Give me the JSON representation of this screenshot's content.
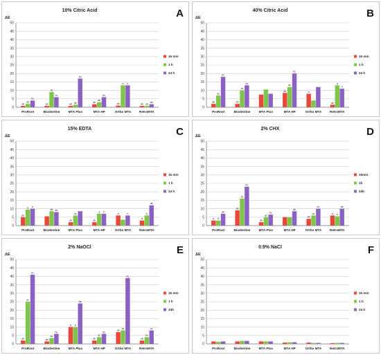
{
  "colors": {
    "s15": "#e8483a",
    "s1h": "#7ec54a",
    "s24h": "#8b62c3",
    "grid": "#c9c9c9",
    "axis": "#7a7a7a"
  },
  "chart_data": [
    {
      "type": "bar",
      "letter": "A",
      "title": "10% Citric Acid",
      "ylabel": "ΔE",
      "ylim": [
        0,
        50
      ],
      "yticks": [
        0,
        5,
        10,
        15,
        20,
        25,
        30,
        35,
        40,
        45,
        50
      ],
      "grid": true,
      "legend": "right",
      "categories": [
        "ProRoot",
        "Biodentine",
        "MTA Plus",
        "MTA HP",
        "Ortho MTA",
        "RetroMTA"
      ],
      "series": [
        {
          "name": "15 min",
          "values": [
            0.8,
            0.8,
            0.8,
            1.8,
            1.0,
            0.8
          ],
          "labels": [
            "ab",
            "ab",
            "ab",
            "ab",
            "ab",
            "ab"
          ]
        },
        {
          "name": "1 h",
          "values": [
            2.0,
            9.0,
            1.5,
            3.0,
            13.0,
            0.8
          ],
          "labels": [
            "ab",
            "ac",
            "ab",
            "ab",
            "a",
            "ab"
          ]
        },
        {
          "name": "24 h",
          "values": [
            4.0,
            6.0,
            17.0,
            6.0,
            13.0,
            1.8
          ],
          "labels": [
            "bc",
            "bc",
            "bc",
            "bc",
            "b",
            "ab"
          ]
        }
      ]
    },
    {
      "type": "bar",
      "letter": "B",
      "title": "40% Citric Acid",
      "ylabel": "ΔE",
      "ylim": [
        0,
        50
      ],
      "yticks": [
        0,
        5,
        10,
        15,
        20,
        25,
        30,
        35,
        40,
        45,
        50
      ],
      "grid": true,
      "legend": "right",
      "categories": [
        "ProRoot",
        "Biodentine",
        "MTA Plus",
        "MTA HP",
        "Ortho MTA",
        "RetroMTA"
      ],
      "series": [
        {
          "name": "15 min",
          "values": [
            2.0,
            2.0,
            7.5,
            8.5,
            8.0,
            1.5
          ],
          "labels": [
            "ab",
            "ab",
            "",
            "ab",
            "a",
            "ab"
          ]
        },
        {
          "name": "1 h",
          "values": [
            7.0,
            10.0,
            10.5,
            12.0,
            4.0,
            13.0
          ],
          "labels": [
            "ac",
            "ac",
            "",
            "ac",
            "",
            "a"
          ]
        },
        {
          "name": "24 h",
          "values": [
            18.0,
            13.0,
            8.0,
            20.0,
            12.0,
            11.0
          ],
          "labels": [
            "bc",
            "bc",
            "",
            "bc",
            "",
            "b"
          ]
        }
      ]
    },
    {
      "type": "bar",
      "letter": "C",
      "title": "15% EDTA",
      "ylabel": "ΔE",
      "ylim": [
        0,
        50
      ],
      "yticks": [
        0,
        5,
        10,
        15,
        20,
        25,
        30,
        35,
        40,
        45,
        50
      ],
      "grid": true,
      "legend": "right",
      "categories": [
        "ProRoot",
        "Biodentine",
        "MTA Plus",
        "MTA HP",
        "Ortho MTA",
        "RetroMTA"
      ],
      "series": [
        {
          "name": "15 min",
          "values": [
            5.0,
            5.5,
            2.0,
            2.0,
            6.0,
            3.0
          ],
          "labels": [
            "ab",
            "",
            "ab",
            "ab",
            "a",
            "a"
          ]
        },
        {
          "name": "1 h",
          "values": [
            9.5,
            8.5,
            6.0,
            7.0,
            3.5,
            6.0
          ],
          "labels": [
            "a",
            "ab",
            "ac",
            "a",
            "",
            "b"
          ]
        },
        {
          "name": "24 h",
          "values": [
            10.0,
            8.0,
            8.5,
            7.0,
            6.0,
            12.0
          ],
          "labels": [
            "b",
            "ab",
            "",
            "b",
            "b",
            "ab"
          ]
        }
      ]
    },
    {
      "type": "bar",
      "letter": "D",
      "title": "2% CHX",
      "ylabel": "ΔE",
      "ylim": [
        0,
        50
      ],
      "yticks": [
        0,
        5,
        10,
        15,
        20,
        25,
        30,
        35,
        40,
        45,
        50
      ],
      "grid": true,
      "legend": "right",
      "categories": [
        "ProRoot",
        "Biodentine",
        "MTA Plus",
        "MTA HP",
        "Ortho MTA",
        "RetroMTA"
      ],
      "series": [
        {
          "name": "15min",
          "values": [
            3.0,
            9.0,
            2.0,
            5.0,
            4.0,
            6.0
          ],
          "labels": [
            "a",
            "ab",
            "ab",
            "",
            "ab",
            "a"
          ]
        },
        {
          "name": "1h",
          "values": [
            3.0,
            16.0,
            5.0,
            5.0,
            6.0,
            5.5
          ],
          "labels": [
            "b",
            "ac",
            "ac",
            "",
            "ac",
            "b"
          ]
        },
        {
          "name": "24h",
          "values": [
            7.0,
            23.0,
            6.5,
            8.5,
            10.0,
            10.0
          ],
          "labels": [
            "ab",
            "bc",
            "bc",
            "ab",
            "bc",
            "ab"
          ]
        }
      ]
    },
    {
      "type": "bar",
      "letter": "E",
      "title": "2% NaOCl",
      "ylabel": "ΔE",
      "ylim": [
        0,
        50
      ],
      "yticks": [
        0,
        5,
        10,
        15,
        20,
        25,
        30,
        35,
        40,
        45,
        50
      ],
      "grid": true,
      "legend": "right",
      "categories": [
        "ProRoot",
        "Biodentine",
        "MTA Plus",
        "MTA HP",
        "Ortho MTA",
        "RetroMTA"
      ],
      "series": [
        {
          "name": "15 min",
          "values": [
            2.0,
            1.5,
            10.0,
            2.0,
            7.0,
            2.0
          ],
          "labels": [
            "ab",
            "ab",
            "a",
            "ab",
            "ab",
            "ab"
          ]
        },
        {
          "name": "1 h",
          "values": [
            25.0,
            3.5,
            10.0,
            4.0,
            8.0,
            4.0
          ],
          "labels": [
            "ac",
            "ac",
            "b",
            "ac",
            "ac",
            "ac"
          ]
        },
        {
          "name": "24h",
          "values": [
            41.0,
            6.0,
            24.0,
            6.0,
            39.0,
            8.0
          ],
          "labels": [
            "bc",
            "bc",
            "ab",
            "bc",
            "bc",
            "bc"
          ]
        }
      ]
    },
    {
      "type": "bar",
      "letter": "F",
      "title": "0.9% NaCl",
      "ylabel": "ΔE",
      "ylim": [
        0,
        50
      ],
      "yticks": [
        0,
        5,
        10,
        15,
        20,
        25,
        30,
        35,
        40,
        45,
        50
      ],
      "grid": true,
      "legend": "right",
      "categories": [
        "ProRoot",
        "Biodentine",
        "MTA Plus",
        "MTA HP",
        "Ortho MTA",
        "RetroMTA"
      ],
      "series": [
        {
          "name": "15 min",
          "values": [
            1.5,
            1.5,
            1.5,
            0.8,
            0.8,
            0.5
          ],
          "labels": [
            "",
            "",
            "",
            "",
            "",
            ""
          ]
        },
        {
          "name": "1 h",
          "values": [
            1.2,
            1.8,
            1.5,
            1.0,
            0.6,
            0.6
          ],
          "labels": [
            "",
            "",
            "",
            "",
            "",
            ""
          ]
        },
        {
          "name": "24 h",
          "values": [
            1.5,
            1.8,
            1.5,
            1.0,
            0.6,
            0.6
          ],
          "labels": [
            "",
            "",
            "",
            "",
            "",
            ""
          ]
        }
      ]
    }
  ]
}
